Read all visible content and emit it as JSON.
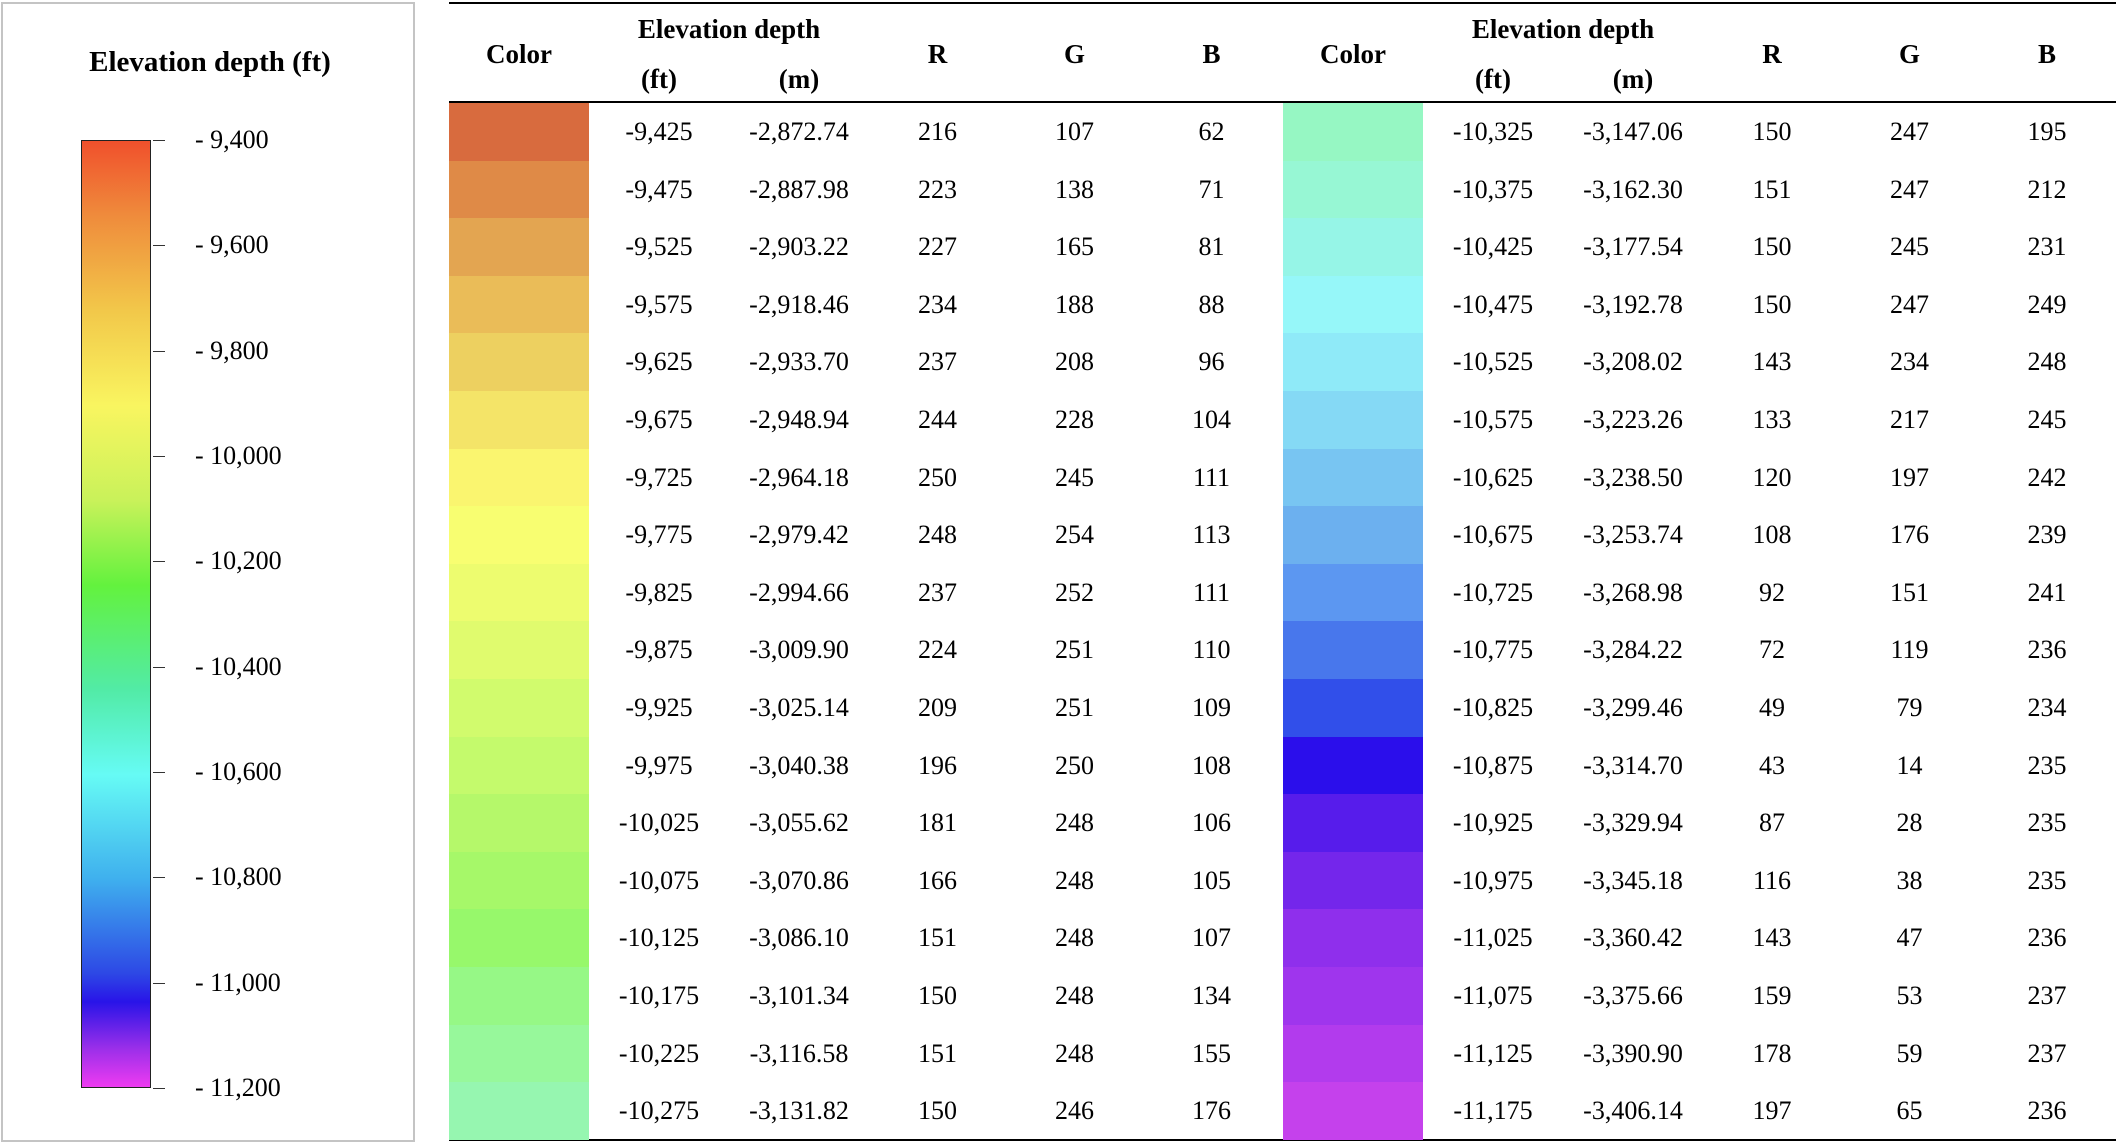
{
  "legend": {
    "title": "Elevation depth (ft)",
    "labels": [
      "- 9,400",
      "- 9,600",
      "- 9,800",
      "- 10,000",
      "- 10,200",
      "- 10,400",
      "- 10,600",
      "- 10,800",
      "- 11,000",
      "- 11,200"
    ]
  },
  "table": {
    "headers": {
      "color": "Color",
      "elevation": "Elevation depth",
      "ft": "(ft)",
      "m": "(m)",
      "r": "R",
      "g": "G",
      "b": "B"
    },
    "left_rows": [
      {
        "ft": "-9,425",
        "m": "-2,872.74",
        "r": "216",
        "g": "107",
        "b": "62"
      },
      {
        "ft": "-9,475",
        "m": "-2,887.98",
        "r": "223",
        "g": "138",
        "b": "71"
      },
      {
        "ft": "-9,525",
        "m": "-2,903.22",
        "r": "227",
        "g": "165",
        "b": "81"
      },
      {
        "ft": "-9,575",
        "m": "-2,918.46",
        "r": "234",
        "g": "188",
        "b": "88"
      },
      {
        "ft": "-9,625",
        "m": "-2,933.70",
        "r": "237",
        "g": "208",
        "b": "96"
      },
      {
        "ft": "-9,675",
        "m": "-2,948.94",
        "r": "244",
        "g": "228",
        "b": "104"
      },
      {
        "ft": "-9,725",
        "m": "-2,964.18",
        "r": "250",
        "g": "245",
        "b": "111"
      },
      {
        "ft": "-9,775",
        "m": "-2,979.42",
        "r": "248",
        "g": "254",
        "b": "113"
      },
      {
        "ft": "-9,825",
        "m": "-2,994.66",
        "r": "237",
        "g": "252",
        "b": "111"
      },
      {
        "ft": "-9,875",
        "m": "-3,009.90",
        "r": "224",
        "g": "251",
        "b": "110"
      },
      {
        "ft": "-9,925",
        "m": "-3,025.14",
        "r": "209",
        "g": "251",
        "b": "109"
      },
      {
        "ft": "-9,975",
        "m": "-3,040.38",
        "r": "196",
        "g": "250",
        "b": "108"
      },
      {
        "ft": "-10,025",
        "m": "-3,055.62",
        "r": "181",
        "g": "248",
        "b": "106"
      },
      {
        "ft": "-10,075",
        "m": "-3,070.86",
        "r": "166",
        "g": "248",
        "b": "105"
      },
      {
        "ft": "-10,125",
        "m": "-3,086.10",
        "r": "151",
        "g": "248",
        "b": "107"
      },
      {
        "ft": "-10,175",
        "m": "-3,101.34",
        "r": "150",
        "g": "248",
        "b": "134"
      },
      {
        "ft": "-10,225",
        "m": "-3,116.58",
        "r": "151",
        "g": "248",
        "b": "155"
      },
      {
        "ft": "-10,275",
        "m": "-3,131.82",
        "r": "150",
        "g": "246",
        "b": "176"
      }
    ],
    "right_rows": [
      {
        "ft": "-10,325",
        "m": "-3,147.06",
        "r": "150",
        "g": "247",
        "b": "195"
      },
      {
        "ft": "-10,375",
        "m": "-3,162.30",
        "r": "151",
        "g": "247",
        "b": "212"
      },
      {
        "ft": "-10,425",
        "m": "-3,177.54",
        "r": "150",
        "g": "245",
        "b": "231"
      },
      {
        "ft": "-10,475",
        "m": "-3,192.78",
        "r": "150",
        "g": "247",
        "b": "249"
      },
      {
        "ft": "-10,525",
        "m": "-3,208.02",
        "r": "143",
        "g": "234",
        "b": "248"
      },
      {
        "ft": "-10,575",
        "m": "-3,223.26",
        "r": "133",
        "g": "217",
        "b": "245"
      },
      {
        "ft": "-10,625",
        "m": "-3,238.50",
        "r": "120",
        "g": "197",
        "b": "242"
      },
      {
        "ft": "-10,675",
        "m": "-3,253.74",
        "r": "108",
        "g": "176",
        "b": "239"
      },
      {
        "ft": "-10,725",
        "m": "-3,268.98",
        "r": "92",
        "g": "151",
        "b": "241"
      },
      {
        "ft": "-10,775",
        "m": "-3,284.22",
        "r": "72",
        "g": "119",
        "b": "236"
      },
      {
        "ft": "-10,825",
        "m": "-3,299.46",
        "r": "49",
        "g": "79",
        "b": "234"
      },
      {
        "ft": "-10,875",
        "m": "-3,314.70",
        "r": "43",
        "g": "14",
        "b": "235"
      },
      {
        "ft": "-10,925",
        "m": "-3,329.94",
        "r": "87",
        "g": "28",
        "b": "235"
      },
      {
        "ft": "-10,975",
        "m": "-3,345.18",
        "r": "116",
        "g": "38",
        "b": "235"
      },
      {
        "ft": "-11,025",
        "m": "-3,360.42",
        "r": "143",
        "g": "47",
        "b": "236"
      },
      {
        "ft": "-11,075",
        "m": "-3,375.66",
        "r": "159",
        "g": "53",
        "b": "237"
      },
      {
        "ft": "-11,125",
        "m": "-3,390.90",
        "r": "178",
        "g": "59",
        "b": "237"
      },
      {
        "ft": "-11,175",
        "m": "-3,406.14",
        "r": "197",
        "g": "65",
        "b": "236"
      }
    ]
  }
}
